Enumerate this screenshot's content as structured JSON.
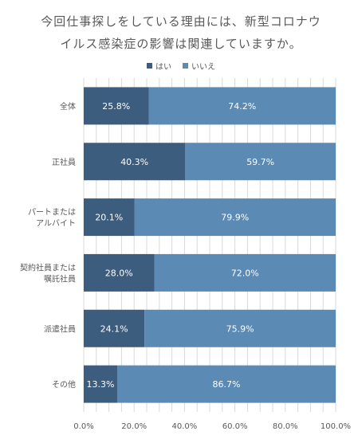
{
  "chart_data": {
    "type": "bar",
    "orientation": "horizontal",
    "stacked": true,
    "title_lines": [
      "今回仕事探しをしている理由には、新型コロナウ",
      "イルス感染症の影響は関連していますか。"
    ],
    "categories": [
      [
        "全体"
      ],
      [
        "正社員"
      ],
      [
        "パートまたは",
        "アルバイト"
      ],
      [
        "契約社員または",
        "嘱託社員"
      ],
      [
        "派遣社員"
      ],
      [
        "その他"
      ]
    ],
    "series": [
      {
        "name": "はい",
        "color": "#3d5d7e",
        "values": [
          25.8,
          40.3,
          20.1,
          28.0,
          24.1,
          13.3
        ],
        "labels": [
          "25.8%",
          "40.3%",
          "20.1%",
          "28.0%",
          "24.1%",
          "13.3%"
        ]
      },
      {
        "name": "いいえ",
        "color": "#5b8ab5",
        "values": [
          74.2,
          59.7,
          79.9,
          72.0,
          75.9,
          86.7
        ],
        "labels": [
          "74.2%",
          "59.7%",
          "79.9%",
          "72.0%",
          "75.9%",
          "86.7%"
        ]
      }
    ],
    "xlim": [
      0,
      100
    ],
    "xticks": [
      0,
      20,
      40,
      60,
      80,
      100
    ],
    "xtick_labels": [
      "0.0%",
      "20.0%",
      "40.0%",
      "60.0%",
      "80.0%",
      "100.0%"
    ],
    "grid": true,
    "legend_position": "top"
  }
}
